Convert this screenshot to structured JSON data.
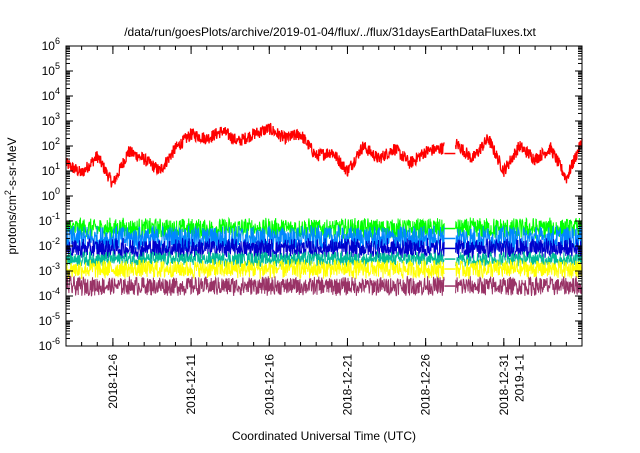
{
  "chart_data": {
    "type": "line",
    "title": "/data/run/goesPlots/archive/2019-01-04/flux/../flux/31daysEarthDataFluxes.txt",
    "xlabel": "Coordinated Universal Time (UTC)",
    "ylabel": "protons/cm²-s-sr-MeV",
    "yscale": "log",
    "ylim": [
      1e-06,
      1000000.0
    ],
    "xlim": [
      "2018-12-03",
      "2019-01-05"
    ],
    "grid": false,
    "legend": "none",
    "x_ticks": [
      {
        "label": "2018-12-6",
        "date": "2018-12-06"
      },
      {
        "label": "2018-12-11",
        "date": "2018-12-11"
      },
      {
        "label": "2018-12-16",
        "date": "2018-12-16"
      },
      {
        "label": "2018-12-21",
        "date": "2018-12-21"
      },
      {
        "label": "2018-12-26",
        "date": "2018-12-26"
      },
      {
        "label": "2018-12-31",
        "date": "2018-12-31"
      },
      {
        "label": "2019-1-1",
        "date": "2019-01-01"
      }
    ],
    "y_ticks": [
      {
        "base": "10",
        "exp": "-6",
        "value": 1e-06
      },
      {
        "base": "10",
        "exp": "-5",
        "value": 1e-05
      },
      {
        "base": "10",
        "exp": "-4",
        "value": 0.0001
      },
      {
        "base": "10",
        "exp": "-3",
        "value": 0.001
      },
      {
        "base": "10",
        "exp": "-2",
        "value": 0.01
      },
      {
        "base": "10",
        "exp": "-1",
        "value": 0.1
      },
      {
        "base": "10",
        "exp": "0",
        "value": 1
      },
      {
        "base": "10",
        "exp": "1",
        "value": 10
      },
      {
        "base": "10",
        "exp": "2",
        "value": 100
      },
      {
        "base": "10",
        "exp": "3",
        "value": 1000
      },
      {
        "base": "10",
        "exp": "4",
        "value": 10000
      },
      {
        "base": "10",
        "exp": "5",
        "value": 100000
      },
      {
        "base": "10",
        "exp": "6",
        "value": 1000000
      }
    ],
    "data_gap": [
      "2018-12-27",
      "2018-12-28"
    ],
    "series": [
      {
        "color": "#ff0000",
        "typical": 50,
        "low": 2,
        "high": 600,
        "x": [
          "2018-12-03",
          "2018-12-04",
          "2018-12-05",
          "2018-12-06",
          "2018-12-07",
          "2018-12-08",
          "2018-12-09",
          "2018-12-10",
          "2018-12-11",
          "2018-12-12",
          "2018-12-13",
          "2018-12-14",
          "2018-12-15",
          "2018-12-16",
          "2018-12-17",
          "2018-12-18",
          "2018-12-19",
          "2018-12-20",
          "2018-12-21",
          "2018-12-22",
          "2018-12-23",
          "2018-12-24",
          "2018-12-25",
          "2018-12-26",
          "2018-12-27",
          "2018-12-28",
          "2018-12-29",
          "2018-12-30",
          "2018-12-31",
          "2019-01-01",
          "2019-01-02",
          "2019-01-03",
          "2019-01-04",
          "2019-01-05"
        ],
        "y": [
          20,
          8,
          40,
          3,
          60,
          30,
          10,
          80,
          300,
          200,
          400,
          150,
          300,
          500,
          200,
          300,
          40,
          60,
          10,
          100,
          30,
          80,
          20,
          60,
          80,
          120,
          30,
          200,
          10,
          100,
          30,
          80,
          5,
          150
        ]
      },
      {
        "color": "#00ff00",
        "typical": 0.05,
        "low": 0.02,
        "high": 0.15
      },
      {
        "color": "#0088ff",
        "typical": 0.02,
        "low": 0.005,
        "high": 0.06
      },
      {
        "color": "#0000cc",
        "typical": 0.008,
        "low": 0.003,
        "high": 0.02
      },
      {
        "color": "#00bb99",
        "typical": 0.003,
        "low": 0.0015,
        "high": 0.006
      },
      {
        "color": "#ffff00",
        "typical": 0.0012,
        "low": 0.0005,
        "high": 0.003
      },
      {
        "color": "#993366",
        "typical": 0.00025,
        "low": 8e-05,
        "high": 0.0005
      }
    ]
  }
}
